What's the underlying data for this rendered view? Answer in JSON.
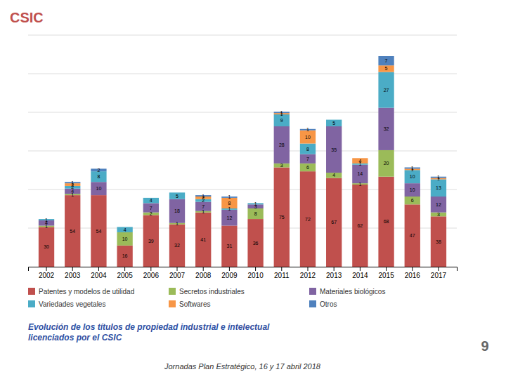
{
  "chart_data": {
    "type": "bar",
    "stacked": true,
    "title": "Evolución de los títulos de propiedad industrial e intelectual\nlicenciados por el CSIC",
    "subtitle": "Jornadas Plan Estratégico, 16 y 17 abril 2018",
    "annotations": [
      "CSIC",
      "9"
    ],
    "categories": [
      "2002",
      "2003",
      "2004",
      "2005",
      "2006",
      "2007",
      "2008",
      "2009",
      "2010",
      "2011",
      "2012",
      "2013",
      "2014",
      "2015",
      "2016",
      "2017"
    ],
    "series": [
      {
        "name": "Patentes y modelos de utilidad",
        "color": "#C0504D",
        "values": [
          30,
          54,
          54,
          16,
          39,
          32,
          41,
          31,
          36,
          75,
          72,
          67,
          62,
          68,
          47,
          38
        ]
      },
      {
        "name": "Secretos industriales",
        "color": "#9BBB59",
        "values": [
          1,
          1,
          0,
          10,
          2,
          1,
          1,
          0,
          8,
          3,
          6,
          4,
          1,
          20,
          6,
          3
        ]
      },
      {
        "name": "Materiales biológicos",
        "color": "#8064A2",
        "values": [
          4,
          4,
          10,
          0,
          7,
          18,
          7,
          12,
          3,
          28,
          7,
          35,
          14,
          32,
          10,
          12
        ]
      },
      {
        "name": "Variedades vegetales",
        "color": "#4BACC6",
        "values": [
          1,
          2,
          8,
          4,
          4,
          5,
          2,
          1,
          1,
          9,
          8,
          5,
          1,
          27,
          10,
          13
        ]
      },
      {
        "name": "Softwares",
        "color": "#F79646",
        "values": [
          0,
          2,
          0,
          0,
          0,
          0,
          2,
          8,
          0,
          1,
          10,
          0,
          4,
          5,
          1,
          1
        ]
      },
      {
        "name": "Otros",
        "color": "#4F81BD",
        "values": [
          0,
          1,
          2,
          0,
          0,
          0,
          1,
          1,
          0,
          1,
          1,
          0,
          0,
          7,
          1,
          1
        ]
      }
    ],
    "ylim": [
      0,
      174.9
    ],
    "yticks": [
      0,
      29.15,
      58.3,
      87.45,
      116.6,
      145.75,
      174.9
    ],
    "grid": true,
    "tick_labels": "x",
    "data_labels": true,
    "legend": "bottom"
  }
}
